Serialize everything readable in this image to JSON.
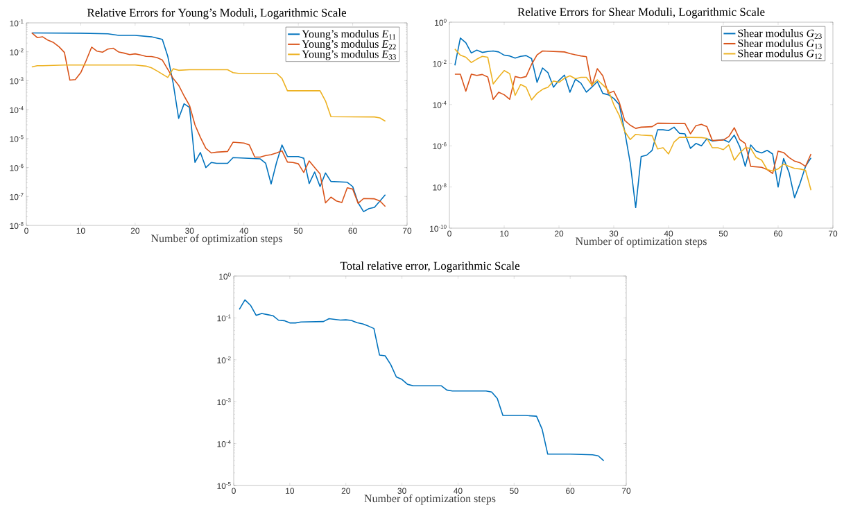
{
  "chart_data": [
    {
      "type": "line",
      "title": "Relative Errors for Young’s Moduli, Logarithmic Scale",
      "xlabel": "Number of optimization steps",
      "log": "y",
      "legend": "top right",
      "marker": "none",
      "line_style": "solid",
      "grid": false,
      "xlim": [
        0,
        70
      ],
      "xticks": [
        0,
        10,
        20,
        30,
        40,
        50,
        60,
        70
      ],
      "ylim": [
        1e-08,
        0.1
      ],
      "yticks": [
        {
          "value": 1e-08,
          "label": "10$^{-8}$"
        },
        {
          "value": 1e-07,
          "label": "10$^{-7}$"
        },
        {
          "value": 1e-06,
          "label": "10$^{-6}$"
        },
        {
          "value": 1e-05,
          "label": "10$^{-5}$"
        },
        {
          "value": 0.0001,
          "label": "10$^{-4}$"
        },
        {
          "value": 0.001,
          "label": "10$^{-3}$"
        },
        {
          "value": 0.01,
          "label": "10$^{-2}$"
        },
        {
          "value": 0.1,
          "label": "10$^{-1}$"
        }
      ],
      "series": [
        {
          "name": "Young’s modulus *E*$_{11}$",
          "color": "#0072bd",
          "x": [
            1,
            10,
            15,
            17,
            20,
            23,
            25,
            26,
            27,
            28,
            29,
            30,
            31,
            32,
            33,
            34,
            35,
            37,
            38,
            43,
            44,
            45,
            46,
            47,
            48,
            50,
            51,
            52,
            53,
            54,
            55,
            56,
            59,
            60,
            61,
            62,
            63,
            64,
            66
          ],
          "values": [
            0.045,
            0.044,
            0.042,
            0.037,
            0.037,
            0.033,
            0.027,
            0.007,
            0.0008,
            5e-05,
            0.00016,
            0.00012,
            1.5e-06,
            3.3e-06,
            1e-06,
            1.5e-06,
            1.4e-06,
            1.4e-06,
            2.2e-06,
            2e-06,
            1.4e-06,
            2.7e-07,
            1.5e-06,
            6e-06,
            2.4e-06,
            2.4e-06,
            2.1e-06,
            2.8e-07,
            7e-07,
            2.2e-07,
            6.5e-07,
            3.3e-07,
            3.1e-07,
            2.2e-07,
            6e-08,
            3e-08,
            3.8e-08,
            4.2e-08,
            1.15e-07
          ]
        },
        {
          "name": "Young’s modulus *E*$_{22}$",
          "color": "#d95319",
          "x": [
            1,
            2,
            3,
            4,
            5,
            6,
            7,
            8,
            9,
            10,
            11,
            12,
            13,
            14,
            15,
            16,
            17,
            18,
            19,
            20,
            21,
            22,
            23,
            24,
            25,
            26,
            27,
            28,
            29,
            30,
            31,
            32,
            33,
            34,
            35,
            37,
            38,
            40,
            41,
            42,
            43,
            44,
            45,
            46,
            47,
            48,
            49,
            50,
            51,
            52,
            53,
            54,
            55,
            56,
            57,
            58,
            59,
            60,
            61,
            62,
            64,
            65,
            66
          ],
          "values": [
            0.045,
            0.031,
            0.033,
            0.025,
            0.021,
            0.015,
            0.0095,
            0.00105,
            0.0011,
            0.0019,
            0.005,
            0.0145,
            0.0105,
            0.0097,
            0.0125,
            0.0133,
            0.0098,
            0.009,
            0.008,
            0.0085,
            0.0078,
            0.007,
            0.0069,
            0.0063,
            0.0052,
            0.0025,
            0.0012,
            0.0007,
            0.0003,
            0.00014,
            3e-05,
            1.1e-05,
            4.6e-06,
            3.2e-06,
            3.4e-06,
            3.6e-06,
            7.5e-06,
            7e-06,
            6e-06,
            2.3e-06,
            2.3e-06,
            2.6e-06,
            2.8e-06,
            3.2e-06,
            3.8e-06,
            1.55e-06,
            1.5e-06,
            1.35e-06,
            6.8e-07,
            1.7e-06,
            1e-06,
            6e-07,
            6e-08,
            9.5e-08,
            7e-08,
            6.2e-08,
            2e-07,
            1.8e-07,
            5.8e-08,
            8.5e-08,
            8.3e-08,
            7e-08,
            4.5e-08
          ]
        },
        {
          "name": "Young’s modulus *E*$_{33}$",
          "color": "#edb120",
          "x": [
            1,
            2,
            3,
            5,
            7,
            20,
            22,
            23,
            24,
            26,
            27,
            28,
            30,
            37,
            38,
            39,
            46,
            47,
            48,
            54,
            55,
            56,
            64,
            65,
            66
          ],
          "values": [
            0.003,
            0.0033,
            0.0033,
            0.0034,
            0.0035,
            0.0035,
            0.0032,
            0.0028,
            0.0022,
            0.0013,
            0.0026,
            0.0023,
            0.0024,
            0.0024,
            0.0019,
            0.0018,
            0.0018,
            0.0012,
            0.00045,
            0.00045,
            0.0002,
            5.7e-05,
            5.6e-05,
            5.2e-05,
            4e-05
          ]
        }
      ]
    },
    {
      "type": "line",
      "title": "Relative Errors for Shear Moduli, Logarithmic Scale",
      "xlabel": "Number of optimization steps",
      "log": "y",
      "legend": "top right",
      "marker": "none",
      "line_style": "solid",
      "grid": false,
      "xlim": [
        0,
        70
      ],
      "xticks": [
        0,
        10,
        20,
        30,
        40,
        50,
        60,
        70
      ],
      "ylim": [
        1e-10,
        1
      ],
      "yticks": [
        {
          "value": 1e-10,
          "label": "10$^{-10}$"
        },
        {
          "value": 1e-08,
          "label": "10$^{-8}$"
        },
        {
          "value": 1e-06,
          "label": "10$^{-6}$"
        },
        {
          "value": 0.0001,
          "label": "10$^{-4}$"
        },
        {
          "value": 0.01,
          "label": "10$^{-2}$"
        },
        {
          "value": 1,
          "label": "10$^{0}$"
        }
      ],
      "series": [
        {
          "name": "Shear modulus *G*$_{23}$",
          "color": "#0072bd",
          "x": [
            1,
            2,
            3,
            4,
            5,
            6,
            7,
            8,
            9,
            10,
            11,
            12,
            13,
            14,
            15,
            16,
            17,
            18,
            19,
            20,
            21,
            22,
            23,
            24,
            25,
            26,
            27,
            28,
            29,
            30,
            31,
            32,
            33,
            34,
            35,
            36,
            37,
            38,
            39,
            40,
            41,
            42,
            43,
            44,
            45,
            46,
            47,
            48,
            50,
            51,
            52,
            53,
            54,
            55,
            56,
            57,
            58,
            59,
            60,
            61,
            62,
            63,
            64,
            65,
            66
          ],
          "values": [
            0.008,
            0.17,
            0.1,
            0.032,
            0.044,
            0.034,
            0.038,
            0.04,
            0.036,
            0.025,
            0.023,
            0.018,
            0.022,
            0.024,
            0.017,
            0.0012,
            0.006,
            0.0035,
            0.0007,
            0.0015,
            0.0027,
            0.0004,
            0.0017,
            0.0011,
            0.0004,
            0.0007,
            0.0013,
            0.00035,
            0.0003,
            0.0002,
            0.0001,
            5e-06,
            1.5e-07,
            1e-09,
            3e-07,
            3.5e-07,
            6e-07,
            6e-06,
            6e-06,
            5.5e-06,
            8e-06,
            4e-06,
            3.8e-06,
            7.5e-07,
            1.3e-06,
            1e-06,
            2.2e-06,
            1.7e-06,
            2e-06,
            1.5e-06,
            3.3e-06,
            9e-07,
            1e-07,
            1.1e-06,
            5.5e-07,
            4.5e-07,
            6e-07,
            4e-07,
            1e-08,
            2.4e-07,
            5e-08,
            3e-09,
            1.5e-08,
            1e-07,
            2.6e-07
          ]
        },
        {
          "name": "Shear modulus *G*$_{13}$",
          "color": "#d95319",
          "x": [
            1,
            2,
            3,
            4,
            5,
            6,
            7,
            8,
            9,
            10,
            11,
            12,
            13,
            14,
            15,
            16,
            17,
            21,
            22,
            23,
            24,
            25,
            26,
            27,
            28,
            29,
            30,
            31,
            32,
            33,
            34,
            35,
            37,
            38,
            43,
            44,
            45,
            46,
            47,
            48,
            50,
            51,
            52,
            53,
            54,
            55,
            57,
            58,
            59,
            60,
            61,
            62,
            63,
            64,
            65,
            66
          ],
          "values": [
            0.003,
            0.003,
            0.00045,
            0.003,
            0.0026,
            0.0029,
            0.0022,
            0.00018,
            0.0004,
            0.0003,
            0.00018,
            0.0023,
            0.002,
            0.0023,
            0.009,
            0.026,
            0.04,
            0.036,
            0.03,
            0.026,
            0.023,
            0.021,
            0.0008,
            0.0055,
            0.0025,
            0.00035,
            0.00045,
            0.00013,
            1.7e-05,
            1e-05,
            7e-06,
            8e-06,
            8.5e-06,
            1.25e-05,
            1.2e-05,
            3.8e-06,
            9.5e-06,
            1.1e-05,
            8.5e-06,
            1.8e-06,
            1.9e-06,
            2.8e-06,
            7.5e-06,
            2e-06,
            1.3e-06,
            1e-07,
            9e-08,
            7e-08,
            4.5e-08,
            5.5e-07,
            4.7e-07,
            2.7e-07,
            1.8e-07,
            1.5e-07,
            1e-07,
            4e-07
          ]
        },
        {
          "name": "Shear modulus *G*$_{12}$",
          "color": "#edb120",
          "x": [
            1,
            2,
            3,
            4,
            5,
            6,
            7,
            8,
            9,
            10,
            11,
            12,
            13,
            14,
            15,
            16,
            17,
            18,
            19,
            20,
            21,
            22,
            23,
            24,
            25,
            26,
            27,
            28,
            29,
            30,
            31,
            32,
            33,
            34,
            35,
            37,
            38,
            39,
            40,
            41,
            42,
            46,
            47,
            48,
            49,
            50,
            51,
            52,
            53,
            54,
            55,
            56,
            57,
            58,
            59,
            60,
            61,
            62,
            63,
            64,
            65,
            66
          ],
          "values": [
            0.05,
            0.025,
            0.02,
            0.011,
            0.016,
            0.022,
            0.02,
            0.001,
            0.0022,
            0.0045,
            0.0032,
            0.00028,
            0.00095,
            0.0007,
            0.00017,
            0.00035,
            0.00055,
            0.0007,
            0.0014,
            0.0012,
            0.0019,
            0.0025,
            0.0018,
            0.0021,
            0.0021,
            0.0009,
            0.0016,
            0.0009,
            0.0005,
            0.0001,
            3e-05,
            5e-06,
            2e-06,
            3.6e-06,
            3.3e-06,
            3.1e-06,
            7e-07,
            8e-07,
            4e-07,
            1.5e-06,
            2.6e-06,
            2.5e-06,
            2.3e-06,
            8e-07,
            8e-07,
            6.5e-07,
            1.1e-06,
            2e-07,
            4.5e-07,
            8e-07,
            7.5e-07,
            2.7e-07,
            2e-07,
            7e-08,
            6e-08,
            7.5e-08,
            1.3e-07,
            1e-07,
            8e-08,
            7.5e-08,
            6.5e-08,
            7e-09
          ]
        }
      ]
    },
    {
      "type": "line",
      "title": "Total relative error, Logarithmic Scale",
      "xlabel": "Number of optimization steps",
      "log": "y",
      "marker": "none",
      "line_style": "solid",
      "grid": false,
      "xlim": [
        0,
        70
      ],
      "xticks": [
        0,
        10,
        20,
        30,
        40,
        50,
        60,
        70
      ],
      "ylim": [
        1e-05,
        1
      ],
      "yticks": [
        {
          "value": 1e-05,
          "label": "10$^{-5}$"
        },
        {
          "value": 0.0001,
          "label": "10$^{-4}$"
        },
        {
          "value": 0.001,
          "label": "10$^{-3}$"
        },
        {
          "value": 0.01,
          "label": "10$^{-2}$"
        },
        {
          "value": 0.1,
          "label": "10$^{-1}$"
        },
        {
          "value": 1,
          "label": "10$^{0}$"
        }
      ],
      "series": [
        {
          "color": "#0072bd",
          "x": [
            1,
            2,
            3,
            4,
            5,
            6,
            7,
            8,
            9,
            10,
            11,
            12,
            16,
            17,
            19,
            20,
            21,
            22,
            23,
            24,
            25,
            26,
            27,
            28,
            29,
            30,
            31,
            32,
            37,
            38,
            39,
            45,
            46,
            47,
            48,
            52,
            54,
            55,
            56,
            60,
            62,
            64,
            65,
            66
          ],
          "values": [
            0.16,
            0.27,
            0.2,
            0.115,
            0.128,
            0.12,
            0.113,
            0.088,
            0.086,
            0.076,
            0.076,
            0.08,
            0.082,
            0.096,
            0.089,
            0.09,
            0.087,
            0.077,
            0.072,
            0.064,
            0.056,
            0.013,
            0.0125,
            0.0077,
            0.0039,
            0.0034,
            0.0026,
            0.0024,
            0.0024,
            0.0019,
            0.0018,
            0.0018,
            0.0017,
            0.0012,
            0.00047,
            0.00047,
            0.00045,
            0.00022,
            5.6e-05,
            5.6e-05,
            5.5e-05,
            5.4e-05,
            5.1e-05,
            3.9e-05
          ]
        }
      ]
    }
  ]
}
